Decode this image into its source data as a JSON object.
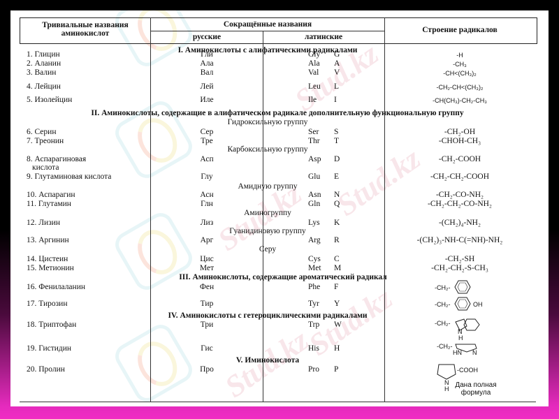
{
  "watermark": "Stud.kz",
  "header": {
    "trivial": "Тривиальные названия аминокислот",
    "abbr": "Сокращённые названия",
    "russian": "русские",
    "latin": "латинские",
    "structure": "Строение радикалов"
  },
  "sections": {
    "s1": "I. Аминокислоты с алифатическими радикалами",
    "s2": "II. Аминокислоты, содержащие в алифатическом радикале дополнительную функциональную группу",
    "g_hydroxy": "Гидроксильную группу",
    "g_carboxy": "Карбоксильную группу",
    "g_amide": "Амидную группу",
    "g_amino": "Аминогруппу",
    "g_guan": "Гуанидиновую группу",
    "g_sulfur": "Серу",
    "s3": "III. Аминокислоты, содержащие ароматический радикал",
    "s4": "IV. Аминокислоты с гетероциклическими радикалами",
    "s5": "V. Иминокислота"
  },
  "rows": [
    {
      "name": "1. Глицин",
      "ru": "Гли",
      "lat": "Gly",
      "one": "G",
      "radical": "-H"
    },
    {
      "name": "2. Аланин",
      "ru": "Ала",
      "lat": "Ala",
      "one": "A",
      "radical": "-CH₃"
    },
    {
      "name": "3. Валин",
      "ru": "Вал",
      "lat": "Val",
      "one": "V",
      "radical": "-CH<(CH₃)₂"
    },
    {
      "name": "4. Лейцин",
      "ru": "Лей",
      "lat": "Leu",
      "one": "L",
      "radical": "-CH₂-CH<(CH₃)₂"
    },
    {
      "name": "5. Изолейцин",
      "ru": "Иле",
      "lat": "Ile",
      "one": "I",
      "radical": "-CH(CH₃)-CH₂-CH₃"
    },
    {
      "name": "6. Серин",
      "ru": "Сер",
      "lat": "Ser",
      "one": "S",
      "radical": "-CH₂-OH"
    },
    {
      "name": "7. Треонин",
      "ru": "Тре",
      "lat": "Thr",
      "one": "T",
      "radical": "-CHOH-CH₃"
    },
    {
      "name": "8. Аспарагиновая",
      "name2": "кислота",
      "ru": "Асп",
      "lat": "Asp",
      "one": "D",
      "radical": "-CH₂-COOH"
    },
    {
      "name": "9. Глутаминовая кислота",
      "ru": "Глу",
      "lat": "Glu",
      "one": "E",
      "radical": "-CH₂-CH₂-COOH"
    },
    {
      "name": "10. Аспарагин",
      "ru": "Асн",
      "lat": "Asn",
      "one": "N",
      "radical": "-CH₂-CO-NH₂"
    },
    {
      "name": "11. Глутамин",
      "ru": "Глн",
      "lat": "Gln",
      "one": "Q",
      "radical": "-CH₂-CH₂-CO-NH₂"
    },
    {
      "name": "12. Лизин",
      "ru": "Лиз",
      "lat": "Lys",
      "one": "K",
      "radical": "-(CH₂)₄-NH₂"
    },
    {
      "name": "13. Аргинин",
      "ru": "Арг",
      "lat": "Arg",
      "one": "R",
      "radical": "-(CH₂)₃-NH-C(=NH)-NH₂"
    },
    {
      "name": "14. Цистеин",
      "ru": "Цис",
      "lat": "Cys",
      "one": "C",
      "radical": "-CH₂-SH"
    },
    {
      "name": "15. Метионин",
      "ru": "Мет",
      "lat": "Met",
      "one": "M",
      "radical": "-CH₂-CH₂-S-CH₃"
    },
    {
      "name": "16. Фенилаланин",
      "ru": "Фен",
      "lat": "Phe",
      "one": "F",
      "radical": "-CH₂-"
    },
    {
      "name": "17. Тирозин",
      "ru": "Тир",
      "lat": "Tyr",
      "one": "Y",
      "radical": "-CH₂-",
      "radical_b": "OH"
    },
    {
      "name": "18. Триптофан",
      "ru": "Три",
      "lat": "Trp",
      "one": "W",
      "radical": "-CH₂-",
      "radical_b": "N",
      "radical_c": "H"
    },
    {
      "name": "19. Гистидин",
      "ru": "Гис",
      "lat": "His",
      "one": "H",
      "radical": "-CH₂-",
      "radical_b": "HN",
      "radical_c": "N"
    },
    {
      "name": "20. Пролин",
      "ru": "Про",
      "lat": "Pro",
      "one": "P",
      "radical": "-COOH",
      "radical_b": "N",
      "radical_c": "H",
      "note": "Дана полная формула"
    }
  ]
}
